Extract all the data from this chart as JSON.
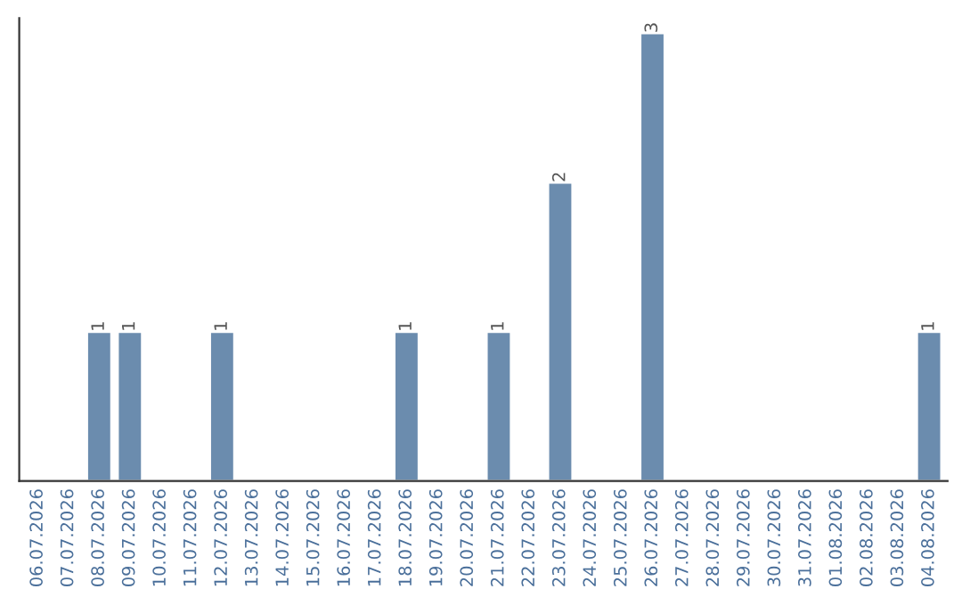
{
  "chart_data": {
    "type": "bar",
    "categories": [
      "06.07.2026",
      "07.07.2026",
      "08.07.2026",
      "09.07.2026",
      "10.07.2026",
      "11.07.2026",
      "12.07.2026",
      "13.07.2026",
      "14.07.2026",
      "15.07.2026",
      "16.07.2026",
      "17.07.2026",
      "18.07.2026",
      "19.07.2026",
      "20.07.2026",
      "21.07.2026",
      "22.07.2026",
      "23.07.2026",
      "24.07.2026",
      "25.07.2026",
      "26.07.2026",
      "27.07.2026",
      "28.07.2026",
      "29.07.2026",
      "30.07.2026",
      "31.07.2026",
      "01.08.2026",
      "02.08.2026",
      "03.08.2026",
      "04.08.2026"
    ],
    "values": [
      0,
      0,
      1,
      1,
      0,
      0,
      1,
      0,
      0,
      0,
      0,
      0,
      1,
      0,
      0,
      1,
      0,
      2,
      0,
      0,
      3,
      0,
      0,
      0,
      0,
      0,
      0,
      0,
      0,
      1
    ],
    "color": "#6b8cae",
    "ylim": [
      0,
      3.1
    ],
    "value_labels": [
      null,
      null,
      "1",
      "1",
      null,
      null,
      "1",
      null,
      null,
      null,
      null,
      null,
      "1",
      null,
      null,
      "1",
      null,
      "2",
      null,
      null,
      "3",
      null,
      null,
      null,
      null,
      null,
      null,
      null,
      null,
      "1"
    ],
    "tick_labels": "x",
    "grid": false
  }
}
